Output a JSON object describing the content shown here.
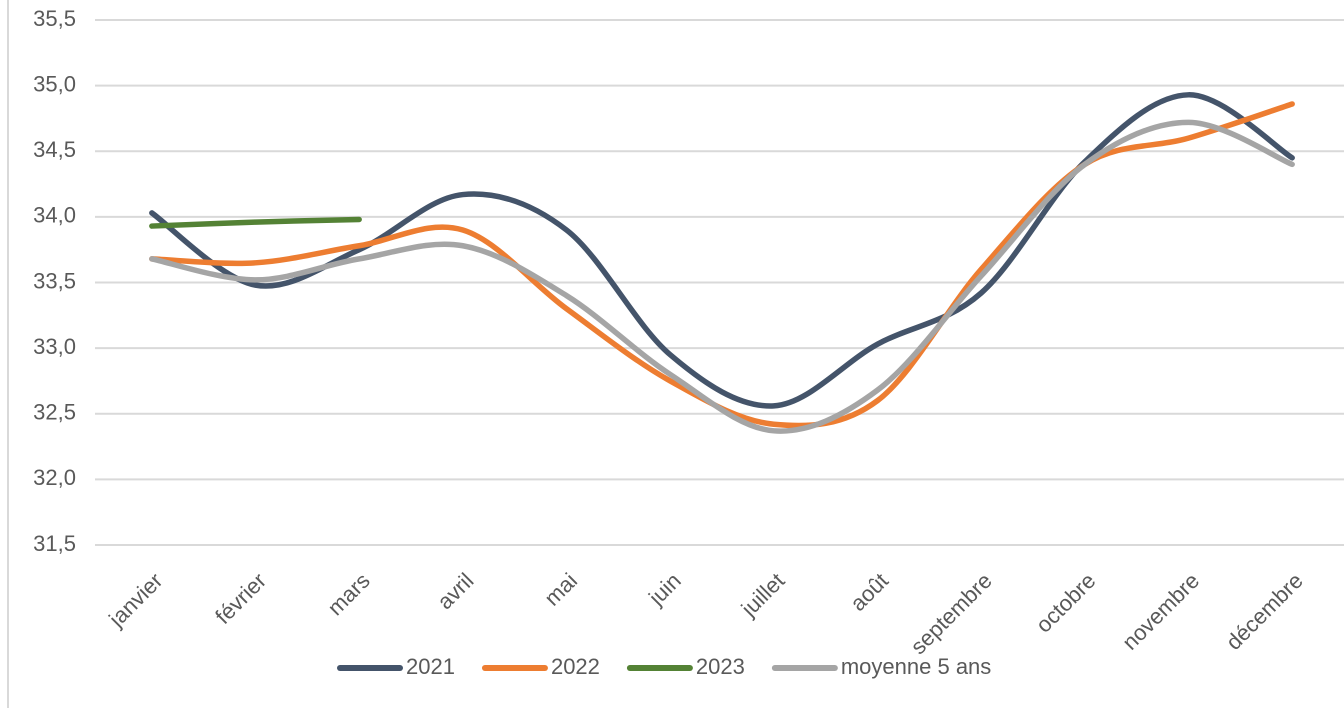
{
  "chart_data": {
    "type": "line",
    "categories": [
      "janvier",
      "février",
      "mars",
      "avril",
      "mai",
      "juin",
      "juillet",
      "août",
      "septembre",
      "octobre",
      "novembre",
      "décembre"
    ],
    "series": [
      {
        "name": "2021",
        "color": "#44546a",
        "values": [
          34.03,
          33.48,
          33.75,
          34.17,
          33.9,
          32.95,
          32.56,
          33.03,
          33.42,
          34.42,
          34.93,
          34.45
        ]
      },
      {
        "name": "2022",
        "color": "#ed7d31",
        "values": [
          33.68,
          33.65,
          33.78,
          33.9,
          33.3,
          32.75,
          32.42,
          32.6,
          33.6,
          34.4,
          34.6,
          34.86
        ]
      },
      {
        "name": "2023",
        "color": "#548235",
        "values": [
          33.93,
          33.96,
          33.98,
          null,
          null,
          null,
          null,
          null,
          null,
          null,
          null,
          null
        ]
      },
      {
        "name": "moyenne 5 ans",
        "color": "#a5a5a5",
        "values": [
          33.68,
          33.52,
          33.68,
          33.78,
          33.4,
          32.8,
          32.37,
          32.68,
          33.55,
          34.4,
          34.72,
          34.4
        ]
      }
    ],
    "ylim": [
      31.5,
      35.5
    ],
    "yticks": [
      {
        "value": 31.5,
        "label": "31,5"
      },
      {
        "value": 32,
        "label": "32,0"
      },
      {
        "value": 32.5,
        "label": "32,5"
      },
      {
        "value": 33,
        "label": "33,0"
      },
      {
        "value": 33.5,
        "label": "33,5"
      },
      {
        "value": 34,
        "label": "34,0"
      },
      {
        "value": 34.5,
        "label": "34,5"
      },
      {
        "value": 35,
        "label": "35,0"
      },
      {
        "value": 35.5,
        "label": "35,5"
      }
    ],
    "grid": true,
    "smooth": true,
    "legend": "bottom"
  }
}
